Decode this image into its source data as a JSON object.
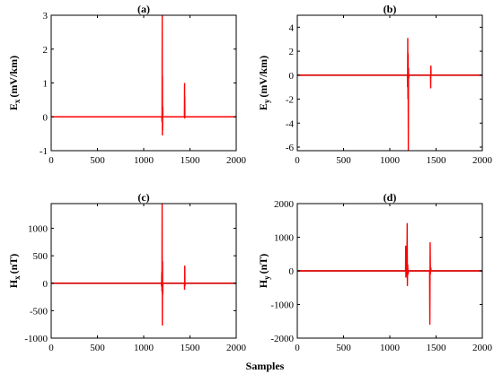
{
  "colors": {
    "signal": "#ff0000",
    "baseline": "#000000",
    "axes": "#000000"
  },
  "shared_xlabel": "Samples",
  "chart_data": [
    {
      "type": "line",
      "title": "(a)",
      "ylabel_main": "E",
      "ylabel_sub": "x",
      "ylabel_unit": "(mV/km)",
      "xlim": [
        0,
        2000
      ],
      "ylim": [
        -1,
        3
      ],
      "xticks": [
        0,
        500,
        1000,
        1500,
        2000
      ],
      "yticks": [
        -1,
        0,
        1,
        2,
        3
      ],
      "series": [
        {
          "values": [
            [
              0,
              0
            ],
            [
              1195,
              0
            ],
            [
              1198,
              -0.15
            ],
            [
              1200,
              3.0
            ],
            [
              1201,
              -0.55
            ],
            [
              1202,
              1.2
            ],
            [
              1203,
              -0.4
            ],
            [
              1205,
              0.3
            ],
            [
              1207,
              0
            ],
            [
              1440,
              0
            ],
            [
              1442,
              1.0
            ],
            [
              1443,
              -0.05
            ],
            [
              1444,
              0.6
            ],
            [
              1445,
              0
            ],
            [
              2000,
              0
            ]
          ]
        }
      ]
    },
    {
      "type": "line",
      "title": "(b)",
      "ylabel_main": "E",
      "ylabel_sub": "y",
      "ylabel_unit": "(mV/km)",
      "xlim": [
        0,
        2000
      ],
      "ylim": [
        -6.3,
        5
      ],
      "xticks": [
        0,
        500,
        1000,
        1500,
        2000
      ],
      "yticks": [
        -6,
        -4,
        -2,
        0,
        2,
        4
      ],
      "series": [
        {
          "values": [
            [
              0,
              0
            ],
            [
              1190,
              0
            ],
            [
              1192,
              -1.0
            ],
            [
              1194,
              3.1
            ],
            [
              1196,
              -2.0
            ],
            [
              1198,
              1.8
            ],
            [
              1200,
              -6.3
            ],
            [
              1202,
              0.6
            ],
            [
              1204,
              -0.3
            ],
            [
              1206,
              0
            ],
            [
              1440,
              0
            ],
            [
              1442,
              -1.1
            ],
            [
              1444,
              0.8
            ],
            [
              1446,
              0
            ],
            [
              2000,
              0
            ]
          ]
        }
      ]
    },
    {
      "type": "line",
      "title": "(c)",
      "ylabel_main": "H",
      "ylabel_sub": "x",
      "ylabel_unit": "(nT)",
      "xlim": [
        0,
        2000
      ],
      "ylim": [
        -1000,
        1450
      ],
      "xticks": [
        0,
        500,
        1000,
        1500,
        2000
      ],
      "yticks": [
        -1000,
        -500,
        0,
        500,
        1000
      ],
      "series": [
        {
          "values": [
            [
              0,
              0
            ],
            [
              1190,
              0
            ],
            [
              1193,
              -60
            ],
            [
              1195,
              200
            ],
            [
              1197,
              -150
            ],
            [
              1199,
              1450
            ],
            [
              1201,
              -770
            ],
            [
              1203,
              400
            ],
            [
              1205,
              -200
            ],
            [
              1207,
              0
            ],
            [
              1440,
              0
            ],
            [
              1442,
              -120
            ],
            [
              1444,
              320
            ],
            [
              1446,
              -50
            ],
            [
              1448,
              0
            ],
            [
              2000,
              0
            ]
          ]
        }
      ]
    },
    {
      "type": "line",
      "title": "(d)",
      "ylabel_main": "H",
      "ylabel_sub": "y",
      "ylabel_unit": "(nT)",
      "xlim": [
        0,
        2000
      ],
      "ylim": [
        -2000,
        2000
      ],
      "xticks": [
        0,
        500,
        1000,
        1500,
        2000
      ],
      "yticks": [
        -2000,
        -1000,
        0,
        1000,
        2000
      ],
      "series": [
        {
          "values": [
            [
              0,
              0
            ],
            [
              1170,
              0
            ],
            [
              1172,
              750
            ],
            [
              1174,
              -200
            ],
            [
              1178,
              -80
            ],
            [
              1184,
              -120
            ],
            [
              1188,
              1420
            ],
            [
              1190,
              -450
            ],
            [
              1193,
              200
            ],
            [
              1197,
              -100
            ],
            [
              1202,
              0
            ],
            [
              1430,
              0
            ],
            [
              1433,
              -1600
            ],
            [
              1436,
              850
            ],
            [
              1439,
              -100
            ],
            [
              1442,
              100
            ],
            [
              1446,
              20
            ],
            [
              1450,
              0
            ],
            [
              2000,
              0
            ]
          ]
        }
      ]
    }
  ]
}
